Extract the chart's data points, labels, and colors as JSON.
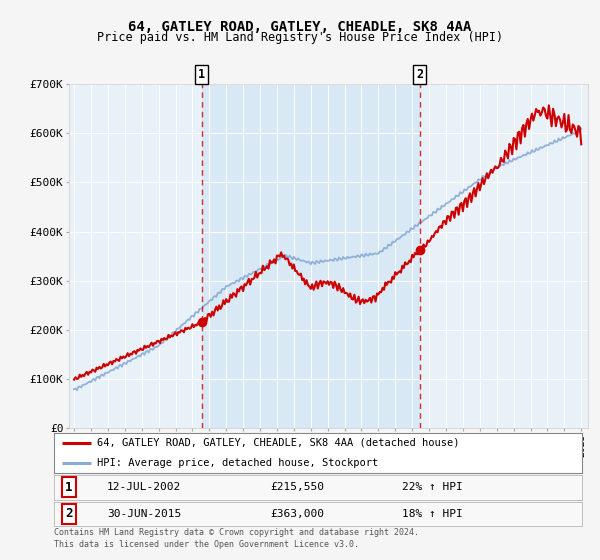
{
  "title": "64, GATLEY ROAD, GATLEY, CHEADLE, SK8 4AA",
  "subtitle": "Price paid vs. HM Land Registry's House Price Index (HPI)",
  "legend_line1": "64, GATLEY ROAD, GATLEY, CHEADLE, SK8 4AA (detached house)",
  "legend_line2": "HPI: Average price, detached house, Stockport",
  "sale1_date": "12-JUL-2002",
  "sale1_price": 215550,
  "sale1_label": "22% ↑ HPI",
  "sale2_date": "30-JUN-2015",
  "sale2_price": 363000,
  "sale2_label": "18% ↑ HPI",
  "footer1": "Contains HM Land Registry data © Crown copyright and database right 2024.",
  "footer2": "This data is licensed under the Open Government Licence v3.0.",
  "red_color": "#cc0000",
  "blue_color": "#88aad4",
  "fig_bg_color": "#f5f5f5",
  "plot_bg_color": "#e8f0f8",
  "highlight_bg_color": "#d8e8f4",
  "ylim": [
    0,
    700000
  ],
  "yticks": [
    0,
    100000,
    200000,
    300000,
    400000,
    500000,
    600000,
    700000
  ],
  "ytick_labels": [
    "£0",
    "£100K",
    "£200K",
    "£300K",
    "£400K",
    "£500K",
    "£600K",
    "£700K"
  ],
  "sale1_x": 2002.54,
  "sale2_x": 2015.46
}
